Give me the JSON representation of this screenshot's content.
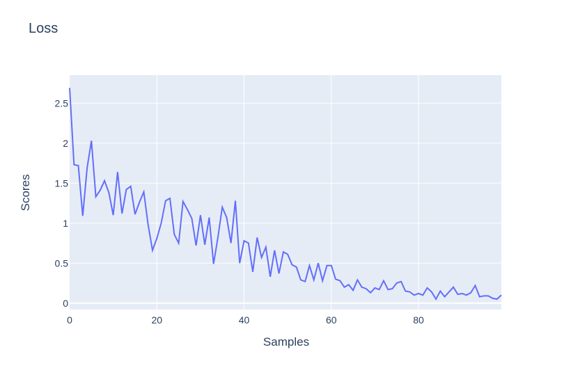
{
  "chart_data": {
    "type": "line",
    "title": "Loss",
    "xlabel": "Samples",
    "ylabel": "Scores",
    "xlim": [
      0,
      99
    ],
    "ylim": [
      -0.08,
      2.85
    ],
    "grid": true,
    "legend": "none",
    "x_ticks": [
      0,
      20,
      40,
      60,
      80
    ],
    "x_tick_labels": [
      "0",
      "20",
      "40",
      "60",
      "80"
    ],
    "y_ticks": [
      0,
      0.5,
      1,
      1.5,
      2,
      2.5
    ],
    "y_tick_labels": [
      "0",
      "0.5",
      "1",
      "1.5",
      "2",
      "2.5"
    ],
    "colors": {
      "line": "#636efa",
      "plot_bg": "#e5ecf6",
      "grid": "#ffffff",
      "text": "#2a3f5f"
    },
    "series": [
      {
        "x": [
          0,
          1,
          2,
          3,
          4,
          5,
          6,
          7,
          8,
          9,
          10,
          11,
          12,
          13,
          14,
          15,
          16,
          17,
          18,
          19,
          20,
          21,
          22,
          23,
          24,
          25,
          26,
          27,
          28,
          29,
          30,
          31,
          32,
          33,
          34,
          35,
          36,
          37,
          38,
          39,
          40,
          41,
          42,
          43,
          44,
          45,
          46,
          47,
          48,
          49,
          50,
          51,
          52,
          53,
          54,
          55,
          56,
          57,
          58,
          59,
          60,
          61,
          62,
          63,
          64,
          65,
          66,
          67,
          68,
          69,
          70,
          71,
          72,
          73,
          74,
          75,
          76,
          77,
          78,
          79,
          80,
          81,
          82,
          83,
          84,
          85,
          86,
          87,
          88,
          89,
          90,
          91,
          92,
          93,
          94,
          95,
          96,
          97,
          98,
          99
        ],
        "values": [
          2.69,
          1.73,
          1.72,
          1.09,
          1.69,
          2.03,
          1.33,
          1.41,
          1.53,
          1.38,
          1.1,
          1.64,
          1.12,
          1.42,
          1.46,
          1.11,
          1.26,
          1.39,
          0.98,
          0.66,
          0.81,
          1.0,
          1.28,
          1.31,
          0.86,
          0.75,
          1.27,
          1.17,
          1.06,
          0.72,
          1.1,
          0.73,
          1.07,
          0.49,
          0.82,
          1.2,
          1.07,
          0.75,
          1.28,
          0.5,
          0.78,
          0.75,
          0.39,
          0.82,
          0.57,
          0.7,
          0.33,
          0.66,
          0.37,
          0.64,
          0.61,
          0.48,
          0.45,
          0.29,
          0.27,
          0.47,
          0.29,
          0.5,
          0.28,
          0.47,
          0.47,
          0.3,
          0.28,
          0.2,
          0.23,
          0.16,
          0.29,
          0.2,
          0.18,
          0.13,
          0.19,
          0.17,
          0.28,
          0.17,
          0.18,
          0.25,
          0.27,
          0.15,
          0.14,
          0.1,
          0.12,
          0.1,
          0.19,
          0.14,
          0.05,
          0.15,
          0.08,
          0.14,
          0.2,
          0.11,
          0.12,
          0.1,
          0.13,
          0.22,
          0.08,
          0.09,
          0.09,
          0.06,
          0.05,
          0.1
        ]
      }
    ]
  }
}
